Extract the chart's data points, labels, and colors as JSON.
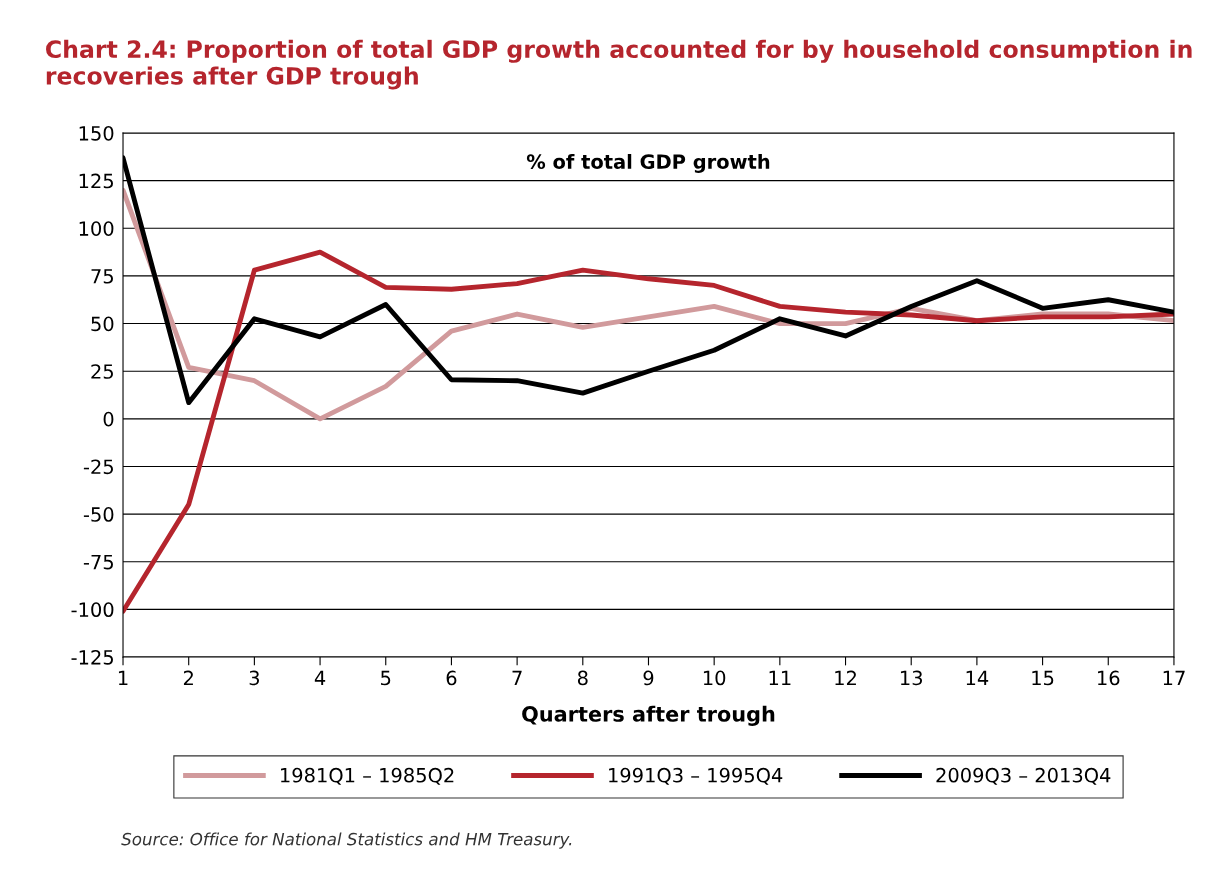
{
  "chart_data": {
    "type": "line",
    "title": "Chart 2.4: Proportion of total GDP growth accounted for by household consumption in recoveries after GDP trough",
    "subtitle": "% of total GDP growth",
    "xlabel": "Quarters after trough",
    "x": [
      1,
      2,
      3,
      4,
      5,
      6,
      7,
      8,
      9,
      10,
      11,
      12,
      13,
      14,
      15,
      16,
      17
    ],
    "series": [
      {
        "name": "1981Q1 – 1985Q2",
        "color": "#d19a9c",
        "values": [
          120,
          27,
          20,
          0,
          17,
          46,
          55,
          48,
          53.5,
          59,
          50,
          50,
          58,
          51.5,
          55,
          55,
          51.5
        ]
      },
      {
        "name": "1991Q3 – 1995Q4",
        "color": "#b5252d",
        "values": [
          -101,
          -45,
          78,
          87.5,
          69,
          68,
          71,
          78,
          73.5,
          70,
          59,
          56,
          54.5,
          51.5,
          53.5,
          53.5,
          55
        ]
      },
      {
        "name": "2009Q3 – 2013Q4",
        "color": "#000000",
        "values": [
          137,
          8.5,
          52.5,
          43,
          60,
          20.5,
          20,
          13.5,
          25,
          36,
          52.5,
          43.5,
          59,
          72.5,
          58,
          62.5,
          56
        ]
      }
    ],
    "xlim": [
      1,
      17
    ],
    "xticks": [
      1,
      2,
      3,
      4,
      5,
      6,
      7,
      8,
      9,
      10,
      11,
      12,
      13,
      14,
      15,
      16,
      17
    ],
    "ylim": [
      -125,
      150
    ],
    "yticks": [
      -125,
      -100,
      -75,
      -50,
      -25,
      0,
      25,
      50,
      75,
      100,
      125,
      150
    ],
    "grid": "y",
    "legend": "bottom",
    "marker": "none",
    "line_style": "solid",
    "annotations": [
      "Source: Office for National Statistics and HM Treasury."
    ]
  }
}
